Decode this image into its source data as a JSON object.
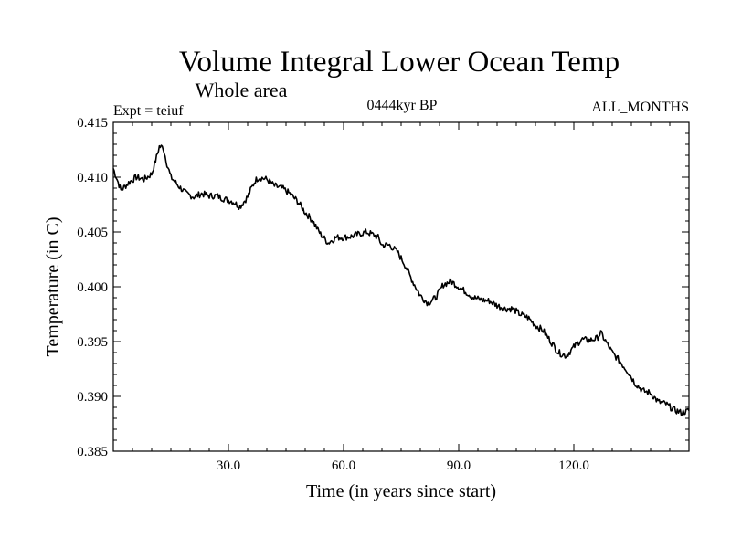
{
  "chart_data": {
    "type": "line",
    "title": "Volume Integral Lower Ocean Temp",
    "subtitle": "Whole area",
    "experiment_label": "Expt = teiuf",
    "period_label": "0444kyr BP",
    "months_label": "ALL_MONTHS",
    "xlabel": "Time (in years since start)",
    "ylabel": "Temperature (in C)",
    "xlim": [
      0,
      150
    ],
    "ylim": [
      0.385,
      0.415
    ],
    "xticks": [
      30,
      60,
      90,
      120
    ],
    "xtick_labels": [
      "30.0",
      "60.0",
      "90.0",
      "120.0"
    ],
    "yticks": [
      0.385,
      0.39,
      0.395,
      0.4,
      0.405,
      0.41,
      0.415
    ],
    "ytick_labels": [
      "0.385",
      "0.390",
      "0.395",
      "0.400",
      "0.405",
      "0.410",
      "0.415"
    ],
    "grid": false,
    "series": [
      {
        "name": "teiuf",
        "color": "#000000",
        "x": [
          0,
          1,
          2,
          4,
          6,
          8,
          10,
          11,
          12,
          13,
          14,
          15,
          17,
          19,
          21,
          23,
          25,
          27,
          29,
          31,
          33,
          35,
          36,
          37,
          38,
          39,
          40,
          42,
          44,
          46,
          48,
          50,
          52,
          54,
          56,
          58,
          60,
          62,
          64,
          66,
          68,
          69,
          70,
          72,
          74,
          76,
          78,
          80,
          82,
          84,
          86,
          88,
          90,
          92,
          94,
          96,
          98,
          100,
          102,
          104,
          106,
          108,
          110,
          112,
          114,
          116,
          118,
          120,
          122,
          124,
          126,
          127,
          128,
          130,
          132,
          134,
          136,
          138,
          140,
          142,
          144,
          146,
          148,
          150
        ],
        "values": [
          0.4108,
          0.4098,
          0.4088,
          0.4095,
          0.41,
          0.4098,
          0.4103,
          0.4115,
          0.4128,
          0.4127,
          0.4112,
          0.41,
          0.4092,
          0.4085,
          0.4082,
          0.4085,
          0.4083,
          0.4083,
          0.408,
          0.4078,
          0.4073,
          0.4082,
          0.409,
          0.4097,
          0.41,
          0.4099,
          0.4098,
          0.4092,
          0.409,
          0.4085,
          0.4078,
          0.4068,
          0.406,
          0.4048,
          0.404,
          0.4045,
          0.4045,
          0.4046,
          0.4048,
          0.405,
          0.4047,
          0.4045,
          0.4038,
          0.4038,
          0.4032,
          0.402,
          0.4005,
          0.3992,
          0.3985,
          0.399,
          0.4002,
          0.4005,
          0.4,
          0.3995,
          0.399,
          0.3988,
          0.3987,
          0.3983,
          0.398,
          0.398,
          0.3975,
          0.3972,
          0.3965,
          0.396,
          0.395,
          0.394,
          0.3937,
          0.3945,
          0.3952,
          0.3951,
          0.3953,
          0.3958,
          0.3952,
          0.394,
          0.3932,
          0.3923,
          0.3912,
          0.3905,
          0.3903,
          0.3895,
          0.3893,
          0.3888,
          0.3885,
          0.3887
        ]
      }
    ]
  }
}
